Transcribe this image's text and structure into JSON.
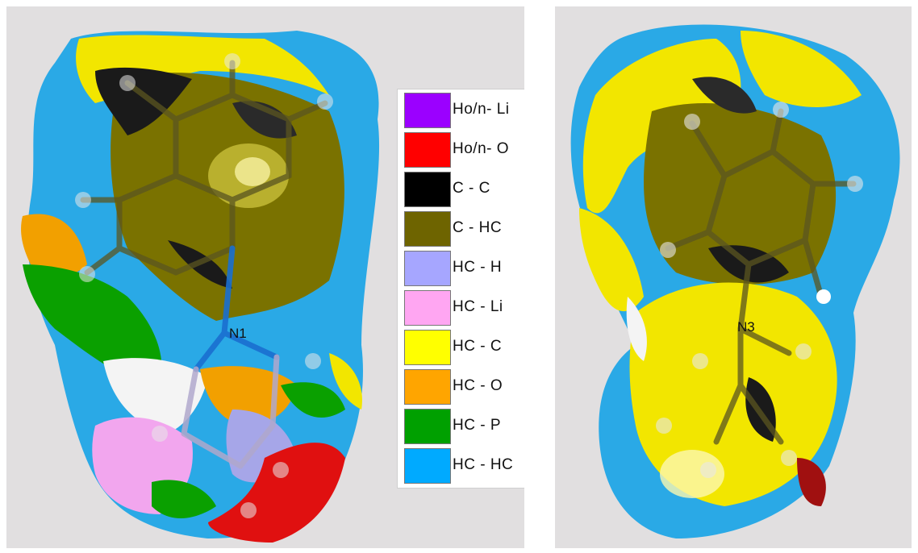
{
  "left_view": {
    "atom_label": "N1",
    "legend": [
      {
        "label": "Ho/n- Li",
        "color": "#9b00ff"
      },
      {
        "label": "Ho/n- O",
        "color": "#ff0000"
      },
      {
        "label": "C - C",
        "color": "#000000"
      },
      {
        "label": "C - HC",
        "color": "#6e6400"
      },
      {
        "label": "HC - H",
        "color": "#a6a6ff"
      },
      {
        "label": "HC - Li",
        "color": "#ffa6f2"
      },
      {
        "label": "HC - C",
        "color": "#ffff00"
      },
      {
        "label": "HC - O",
        "color": "#ffa500"
      },
      {
        "label": "HC - P",
        "color": "#00a000"
      },
      {
        "label": "HC - HC",
        "color": "#00aaff"
      }
    ]
  },
  "right_view": {
    "atom_label": "N3"
  }
}
